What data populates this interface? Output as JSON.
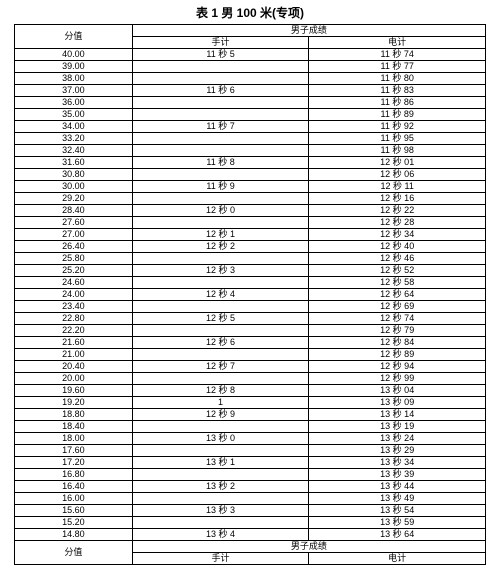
{
  "title": "表 1   男 100 米(专项)",
  "header_score": "分值",
  "header_group": "男子成绩",
  "header_hand": "手计",
  "header_elec": "电计",
  "rows": [
    {
      "score": "40.00",
      "hand": "11 秒 5",
      "elec": "11 秒 74"
    },
    {
      "score": "39.00",
      "hand": "",
      "elec": "11 秒 77"
    },
    {
      "score": "38.00",
      "hand": "",
      "elec": "11 秒 80"
    },
    {
      "score": "37.00",
      "hand": "11 秒 6",
      "elec": "11 秒 83"
    },
    {
      "score": "36.00",
      "hand": "",
      "elec": "11 秒 86"
    },
    {
      "score": "35.00",
      "hand": "",
      "elec": "11 秒 89"
    },
    {
      "score": "34.00",
      "hand": "11 秒 7",
      "elec": "11 秒 92"
    },
    {
      "score": "33.20",
      "hand": "",
      "elec": "11 秒 95"
    },
    {
      "score": "32.40",
      "hand": "",
      "elec": "11 秒 98"
    },
    {
      "score": "31.60",
      "hand": "11 秒 8",
      "elec": "12 秒 01"
    },
    {
      "score": "30.80",
      "hand": "",
      "elec": "12 秒 06"
    },
    {
      "score": "30.00",
      "hand": "11 秒 9",
      "elec": "12 秒 11"
    },
    {
      "score": "29.20",
      "hand": "",
      "elec": "12 秒 16"
    },
    {
      "score": "28.40",
      "hand": "12 秒 0",
      "elec": "12 秒 22"
    },
    {
      "score": "27.60",
      "hand": "",
      "elec": "12 秒 28"
    },
    {
      "score": "27.00",
      "hand": "12 秒 1",
      "elec": "12 秒 34"
    },
    {
      "score": "26.40",
      "hand": "12 秒 2",
      "elec": "12 秒 40"
    },
    {
      "score": "25.80",
      "hand": "",
      "elec": "12 秒 46"
    },
    {
      "score": "25.20",
      "hand": "12 秒 3",
      "elec": "12 秒 52"
    },
    {
      "score": "24.60",
      "hand": "",
      "elec": "12 秒 58"
    },
    {
      "score": "24.00",
      "hand": "12 秒 4",
      "elec": "12 秒 64"
    },
    {
      "score": "23.40",
      "hand": "",
      "elec": "12 秒 69"
    },
    {
      "score": "22.80",
      "hand": "12 秒 5",
      "elec": "12 秒 74"
    },
    {
      "score": "22.20",
      "hand": "",
      "elec": "12 秒 79"
    },
    {
      "score": "21.60",
      "hand": "12 秒 6",
      "elec": "12 秒 84"
    },
    {
      "score": "21.00",
      "hand": "",
      "elec": "12 秒 89"
    },
    {
      "score": "20.40",
      "hand": "12 秒 7",
      "elec": "12 秒 94"
    },
    {
      "score": "20.00",
      "hand": "",
      "elec": "12 秒 99"
    },
    {
      "score": "19.60",
      "hand": "12 秒 8",
      "elec": "13 秒 04"
    },
    {
      "score": "19.20",
      "hand": "1",
      "elec": "13 秒 09"
    },
    {
      "score": "18.80",
      "hand": "12 秒 9",
      "elec": "13 秒 14"
    },
    {
      "score": "18.40",
      "hand": "",
      "elec": "13 秒 19"
    },
    {
      "score": "18.00",
      "hand": "13 秒 0",
      "elec": "13 秒 24"
    },
    {
      "score": "17.60",
      "hand": "",
      "elec": "13 秒 29"
    },
    {
      "score": "17.20",
      "hand": "13 秒 1",
      "elec": "13 秒 34"
    },
    {
      "score": "16.80",
      "hand": "",
      "elec": "13 秒 39"
    },
    {
      "score": "16.40",
      "hand": "13 秒 2",
      "elec": "13 秒 44"
    },
    {
      "score": "16.00",
      "hand": "",
      "elec": "13 秒 49"
    },
    {
      "score": "15.60",
      "hand": "13 秒 3",
      "elec": "13 秒 54"
    },
    {
      "score": "15.20",
      "hand": "",
      "elec": "13 秒 59"
    },
    {
      "score": "14.80",
      "hand": "13 秒 4",
      "elec": "13 秒 64"
    }
  ],
  "footer_score": "分值",
  "footer_group": "男子成绩",
  "footer_hand": "手计",
  "footer_elec": "电计"
}
